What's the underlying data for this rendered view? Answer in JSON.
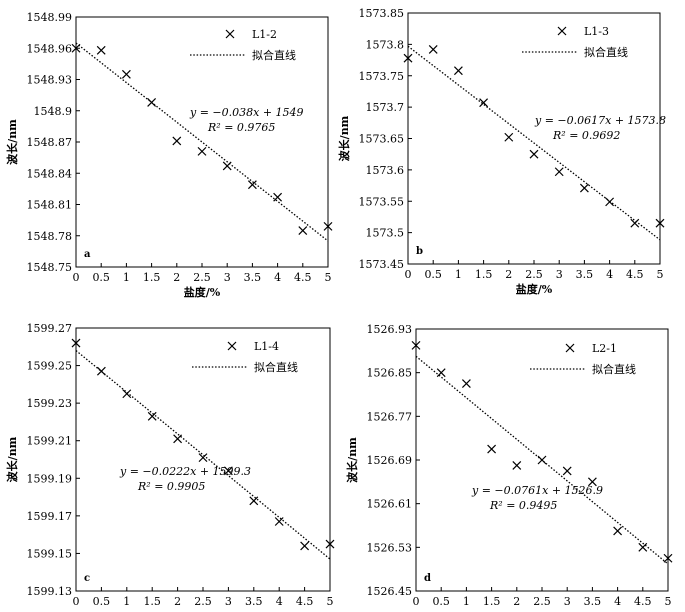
{
  "chart_data": [
    {
      "type": "scatter",
      "panel_label": "a",
      "xlabel": "盐度/%",
      "ylabel": "波长/nm",
      "xlim": [
        0,
        5
      ],
      "ylim": [
        1548.75,
        1548.99
      ],
      "xticks": [
        "0",
        "0.5",
        "1",
        "1.5",
        "2",
        "2.5",
        "3",
        "3.5",
        "4",
        "4.5",
        "5"
      ],
      "yticks": [
        "1548.75",
        "1548.78",
        "1548.81",
        "1548.84",
        "1548.87",
        "1548.9",
        "1548.93",
        "1548.96",
        "1548.99"
      ],
      "series": [
        {
          "name": "L1-2",
          "x": [
            0,
            0.5,
            1,
            1.5,
            2,
            2.5,
            3,
            3.5,
            4,
            4.5,
            5
          ],
          "y": [
            1548.96,
            1548.958,
            1548.935,
            1548.908,
            1548.871,
            1548.861,
            1548.847,
            1548.829,
            1548.817,
            1548.785,
            1548.789
          ]
        }
      ],
      "fit": {
        "name": "拟合直线",
        "slope": -0.038,
        "intercept": 1548.965,
        "equation": "y = −0.038x + 1549",
        "r2": "R² = 0.9765"
      },
      "legend_position": "top-right"
    },
    {
      "type": "scatter",
      "panel_label": "b",
      "xlabel": "盐度/%",
      "ylabel": "波长/nm",
      "xlim": [
        0,
        5
      ],
      "ylim": [
        1573.45,
        1573.85
      ],
      "xticks": [
        "0",
        "0.5",
        "1",
        "1.5",
        "2",
        "2.5",
        "3",
        "3.5",
        "4",
        "4.5",
        "5"
      ],
      "yticks": [
        "1573.45",
        "1573.5",
        "1573.55",
        "1573.6",
        "1573.65",
        "1573.7",
        "1573.75",
        "1573.8",
        "1573.85"
      ],
      "series": [
        {
          "name": "L1-3",
          "x": [
            0,
            0.5,
            1,
            1.5,
            2,
            2.5,
            3,
            3.5,
            4,
            4.5,
            5
          ],
          "y": [
            1573.778,
            1573.792,
            1573.758,
            1573.707,
            1573.652,
            1573.625,
            1573.597,
            1573.571,
            1573.549,
            1573.515,
            1573.515
          ]
        }
      ],
      "fit": {
        "name": "拟合直线",
        "slope": -0.0617,
        "intercept": 1573.797,
        "equation": "y = −0.0617x + 1573.8",
        "r2": "R² = 0.9692"
      },
      "legend_position": "top-right"
    },
    {
      "type": "scatter",
      "panel_label": "c",
      "xlabel": "盐度/%",
      "ylabel": "波长/nm",
      "xlim": [
        0,
        5
      ],
      "ylim": [
        1599.13,
        1599.27
      ],
      "xticks": [
        "0",
        "0.5",
        "1",
        "1.5",
        "2",
        "2.5",
        "3",
        "3.5",
        "4",
        "4.5",
        "5"
      ],
      "yticks": [
        "1599.13",
        "1599.15",
        "1599.17",
        "1599.19",
        "1599.21",
        "1599.23",
        "1599.25",
        "1599.27"
      ],
      "series": [
        {
          "name": "L1-4",
          "x": [
            0,
            0.5,
            1,
            1.5,
            2,
            2.5,
            3,
            3.5,
            4,
            4.5,
            5
          ],
          "y": [
            1599.262,
            1599.247,
            1599.235,
            1599.223,
            1599.211,
            1599.201,
            1599.194,
            1599.178,
            1599.167,
            1599.154,
            1599.155
          ]
        }
      ],
      "fit": {
        "name": "拟合直线",
        "slope": -0.0222,
        "intercept": 1599.258,
        "equation": "y = −0.0222x + 1599.3",
        "r2": "R² = 0.9905"
      },
      "legend_position": "top-right"
    },
    {
      "type": "scatter",
      "panel_label": "d",
      "xlabel": "盐度/%",
      "ylabel": "波长/nm",
      "xlim": [
        0,
        5
      ],
      "ylim": [
        1526.45,
        1526.93
      ],
      "xticks": [
        "0",
        "0.5",
        "1",
        "1.5",
        "2",
        "2.5",
        "3",
        "3.5",
        "4",
        "4.5",
        "5"
      ],
      "yticks": [
        "1526.45",
        "1526.53",
        "1526.61",
        "1526.69",
        "1526.77",
        "1526.85",
        "1526.93"
      ],
      "series": [
        {
          "name": "L2-1",
          "x": [
            0,
            0.5,
            1,
            1.5,
            2,
            2.5,
            3,
            3.5,
            4,
            4.5,
            5
          ],
          "y": [
            1526.9,
            1526.85,
            1526.83,
            1526.71,
            1526.68,
            1526.69,
            1526.67,
            1526.65,
            1526.56,
            1526.53,
            1526.51
          ]
        }
      ],
      "fit": {
        "name": "拟合直线",
        "slope": -0.0761,
        "intercept": 1526.88,
        "equation": "y = −0.0761x + 1526.9",
        "r2": "R² = 0.9495"
      },
      "legend_position": "top-right"
    }
  ]
}
